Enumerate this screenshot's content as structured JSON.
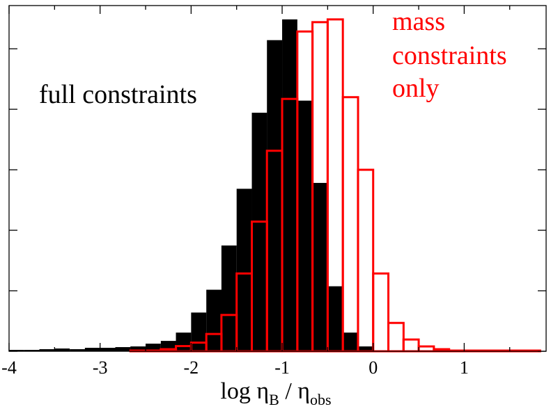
{
  "chart_data": {
    "type": "bar",
    "title": "",
    "xlabel": {
      "main": "log η",
      "sub1": "B",
      "sep": " / η",
      "sub2": "obs"
    },
    "ylabel": "",
    "xlim": [
      -4.0,
      1.9
    ],
    "ylim": [
      0,
      1.0
    ],
    "bin_width": 0.167,
    "x_ticks": [
      -4,
      -3,
      -2,
      -1,
      0,
      1
    ],
    "x_tick_labels": [
      "-4",
      "-3",
      "-2",
      "-1",
      "0",
      "1"
    ],
    "y_tick_values": [
      0.0,
      0.175,
      0.35,
      0.525,
      0.7,
      0.875
    ],
    "series": [
      {
        "name": "full constraints",
        "style": "filled",
        "color": "#000000",
        "bins": [
          {
            "x0": -4.0,
            "v": 0.004
          },
          {
            "x0": -3.833,
            "v": 0.004
          },
          {
            "x0": -3.667,
            "v": 0.006
          },
          {
            "x0": -3.5,
            "v": 0.008
          },
          {
            "x0": -3.333,
            "v": 0.006
          },
          {
            "x0": -3.167,
            "v": 0.01
          },
          {
            "x0": -3.0,
            "v": 0.01
          },
          {
            "x0": -2.833,
            "v": 0.012
          },
          {
            "x0": -2.667,
            "v": 0.014
          },
          {
            "x0": -2.5,
            "v": 0.022
          },
          {
            "x0": -2.333,
            "v": 0.03
          },
          {
            "x0": -2.167,
            "v": 0.054
          },
          {
            "x0": -2.0,
            "v": 0.112
          },
          {
            "x0": -1.833,
            "v": 0.178
          },
          {
            "x0": -1.667,
            "v": 0.306
          },
          {
            "x0": -1.5,
            "v": 0.47
          },
          {
            "x0": -1.333,
            "v": 0.69
          },
          {
            "x0": -1.167,
            "v": 0.9
          },
          {
            "x0": -1.0,
            "v": 0.96
          },
          {
            "x0": -0.833,
            "v": 0.725
          },
          {
            "x0": -0.667,
            "v": 0.487
          },
          {
            "x0": -0.5,
            "v": 0.188
          },
          {
            "x0": -0.333,
            "v": 0.054
          },
          {
            "x0": -0.167,
            "v": 0.014
          },
          {
            "x0": 0.0,
            "v": 0.002
          }
        ]
      },
      {
        "name": "mass constraints only",
        "style": "outline",
        "color": "#ff0000",
        "bins": [
          {
            "x0": -4.0,
            "v": 0.0
          },
          {
            "x0": -3.833,
            "v": 0.0
          },
          {
            "x0": -3.667,
            "v": 0.0
          },
          {
            "x0": -3.5,
            "v": 0.0
          },
          {
            "x0": -3.333,
            "v": 0.0
          },
          {
            "x0": -3.167,
            "v": 0.0
          },
          {
            "x0": -3.0,
            "v": 0.0
          },
          {
            "x0": -2.833,
            "v": 0.0
          },
          {
            "x0": -2.667,
            "v": 0.002
          },
          {
            "x0": -2.5,
            "v": 0.002
          },
          {
            "x0": -2.333,
            "v": 0.006
          },
          {
            "x0": -2.167,
            "v": 0.015
          },
          {
            "x0": -2.0,
            "v": 0.025
          },
          {
            "x0": -1.833,
            "v": 0.05
          },
          {
            "x0": -1.667,
            "v": 0.105
          },
          {
            "x0": -1.5,
            "v": 0.225
          },
          {
            "x0": -1.333,
            "v": 0.375
          },
          {
            "x0": -1.167,
            "v": 0.58
          },
          {
            "x0": -1.0,
            "v": 0.73
          },
          {
            "x0": -0.833,
            "v": 0.925
          },
          {
            "x0": -0.667,
            "v": 0.952
          },
          {
            "x0": -0.5,
            "v": 0.96
          },
          {
            "x0": -0.333,
            "v": 0.735
          },
          {
            "x0": -0.167,
            "v": 0.525
          },
          {
            "x0": 0.0,
            "v": 0.225
          },
          {
            "x0": 0.167,
            "v": 0.082
          },
          {
            "x0": 0.333,
            "v": 0.034
          },
          {
            "x0": 0.5,
            "v": 0.014
          },
          {
            "x0": 0.667,
            "v": 0.006
          },
          {
            "x0": 0.833,
            "v": 0.002
          },
          {
            "x0": 1.0,
            "v": 0.002
          },
          {
            "x0": 1.167,
            "v": 0.002
          },
          {
            "x0": 1.333,
            "v": 0.002
          },
          {
            "x0": 1.5,
            "v": 0.002
          },
          {
            "x0": 1.667,
            "v": 0.002
          }
        ]
      }
    ],
    "annotations": [
      {
        "id": "full",
        "text": "full constraints",
        "color": "#000000"
      },
      {
        "id": "mass",
        "lines": [
          "mass",
          "constraints",
          "only"
        ],
        "color": "#ff0000"
      }
    ]
  }
}
